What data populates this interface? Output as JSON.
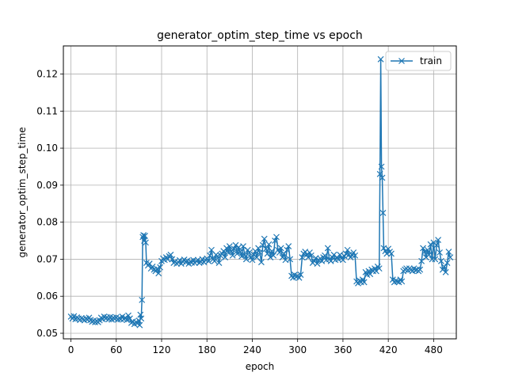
{
  "chart_data": {
    "type": "line",
    "title": "generator_optim_step_time vs epoch",
    "xlabel": "epoch",
    "ylabel": "generator_optim_step_time",
    "xlim": [
      -10,
      510
    ],
    "ylim": [
      0.0485,
      0.1276
    ],
    "xticks": [
      0,
      60,
      120,
      180,
      240,
      300,
      360,
      420,
      480
    ],
    "yticks": [
      0.05,
      0.06,
      0.07,
      0.08,
      0.09,
      0.1,
      0.11,
      0.12
    ],
    "ytick_labels": [
      "0.05",
      "0.06",
      "0.07",
      "0.08",
      "0.09",
      "0.10",
      "0.11",
      "0.12"
    ],
    "grid": true,
    "legend_position": "upper right",
    "series": [
      {
        "name": "train",
        "color": "#1f77b4",
        "marker": "x",
        "points": [
          [
            0,
            0.0545
          ],
          [
            2,
            0.054
          ],
          [
            4,
            0.0546
          ],
          [
            6,
            0.0538
          ],
          [
            8,
            0.0543
          ],
          [
            10,
            0.054
          ],
          [
            12,
            0.0536
          ],
          [
            14,
            0.0541
          ],
          [
            16,
            0.0538
          ],
          [
            18,
            0.0535
          ],
          [
            20,
            0.054
          ],
          [
            22,
            0.0537
          ],
          [
            24,
            0.0542
          ],
          [
            26,
            0.0536
          ],
          [
            28,
            0.0531
          ],
          [
            30,
            0.0534
          ],
          [
            32,
            0.053
          ],
          [
            34,
            0.0533
          ],
          [
            36,
            0.053
          ],
          [
            38,
            0.0535
          ],
          [
            40,
            0.0542
          ],
          [
            42,
            0.0538
          ],
          [
            44,
            0.0545
          ],
          [
            46,
            0.054
          ],
          [
            48,
            0.0543
          ],
          [
            50,
            0.0538
          ],
          [
            52,
            0.0544
          ],
          [
            54,
            0.0537
          ],
          [
            56,
            0.0542
          ],
          [
            58,
            0.0539
          ],
          [
            60,
            0.0543
          ],
          [
            62,
            0.0537
          ],
          [
            64,
            0.0541
          ],
          [
            66,
            0.0538
          ],
          [
            68,
            0.0545
          ],
          [
            70,
            0.0538
          ],
          [
            72,
            0.0542
          ],
          [
            74,
            0.0536
          ],
          [
            76,
            0.0548
          ],
          [
            78,
            0.054
          ],
          [
            80,
            0.0528
          ],
          [
            82,
            0.0532
          ],
          [
            84,
            0.0525
          ],
          [
            86,
            0.053
          ],
          [
            88,
            0.0527
          ],
          [
            90,
            0.0534
          ],
          [
            91,
            0.0522
          ],
          [
            92,
            0.055
          ],
          [
            93,
            0.054
          ],
          [
            94,
            0.059
          ],
          [
            95,
            0.076
          ],
          [
            96,
            0.0765
          ],
          [
            97,
            0.075
          ],
          [
            98,
            0.0763
          ],
          [
            99,
            0.0745
          ],
          [
            100,
            0.069
          ],
          [
            102,
            0.0683
          ],
          [
            104,
            0.0688
          ],
          [
            106,
            0.0675
          ],
          [
            108,
            0.068
          ],
          [
            110,
            0.0672
          ],
          [
            112,
            0.0668
          ],
          [
            114,
            0.0674
          ],
          [
            116,
            0.0662
          ],
          [
            118,
            0.0678
          ],
          [
            120,
            0.0695
          ],
          [
            122,
            0.0702
          ],
          [
            124,
            0.0698
          ],
          [
            126,
            0.0705
          ],
          [
            128,
            0.07
          ],
          [
            130,
            0.0708
          ],
          [
            132,
            0.0712
          ],
          [
            134,
            0.07
          ],
          [
            136,
            0.069
          ],
          [
            138,
            0.0694
          ],
          [
            140,
            0.0688
          ],
          [
            142,
            0.0692
          ],
          [
            144,
            0.0697
          ],
          [
            146,
            0.0688
          ],
          [
            148,
            0.0694
          ],
          [
            150,
            0.0699
          ],
          [
            152,
            0.0692
          ],
          [
            154,
            0.0696
          ],
          [
            156,
            0.0688
          ],
          [
            158,
            0.0694
          ],
          [
            160,
            0.0691
          ],
          [
            162,
            0.0698
          ],
          [
            164,
            0.069
          ],
          [
            166,
            0.0695
          ],
          [
            168,
            0.0698
          ],
          [
            170,
            0.069
          ],
          [
            172,
            0.0693
          ],
          [
            174,
            0.07
          ],
          [
            176,
            0.0692
          ],
          [
            178,
            0.0698
          ],
          [
            180,
            0.0702
          ],
          [
            182,
            0.0695
          ],
          [
            184,
            0.071
          ],
          [
            186,
            0.0725
          ],
          [
            188,
            0.07
          ],
          [
            190,
            0.0695
          ],
          [
            192,
            0.0712
          ],
          [
            194,
            0.0708
          ],
          [
            196,
            0.069
          ],
          [
            198,
            0.071
          ],
          [
            200,
            0.0715
          ],
          [
            202,
            0.0722
          ],
          [
            204,
            0.0705
          ],
          [
            206,
            0.073
          ],
          [
            208,
            0.0718
          ],
          [
            210,
            0.0735
          ],
          [
            212,
            0.0722
          ],
          [
            214,
            0.071
          ],
          [
            216,
            0.0728
          ],
          [
            218,
            0.0738
          ],
          [
            220,
            0.0715
          ],
          [
            222,
            0.0732
          ],
          [
            224,
            0.072
          ],
          [
            226,
            0.0708
          ],
          [
            228,
            0.0735
          ],
          [
            230,
            0.0712
          ],
          [
            232,
            0.07
          ],
          [
            234,
            0.0725
          ],
          [
            236,
            0.0718
          ],
          [
            238,
            0.0705
          ],
          [
            240,
            0.0698
          ],
          [
            242,
            0.0712
          ],
          [
            244,
            0.0722
          ],
          [
            246,
            0.0705
          ],
          [
            248,
            0.073
          ],
          [
            250,
            0.0718
          ],
          [
            252,
            0.0692
          ],
          [
            254,
            0.0738
          ],
          [
            256,
            0.0755
          ],
          [
            258,
            0.0728
          ],
          [
            260,
            0.0715
          ],
          [
            262,
            0.074
          ],
          [
            264,
            0.0705
          ],
          [
            266,
            0.0722
          ],
          [
            268,
            0.071
          ],
          [
            270,
            0.075
          ],
          [
            272,
            0.076
          ],
          [
            274,
            0.0725
          ],
          [
            276,
            0.0718
          ],
          [
            278,
            0.073
          ],
          [
            280,
            0.0705
          ],
          [
            282,
            0.0715
          ],
          [
            284,
            0.0698
          ],
          [
            286,
            0.0725
          ],
          [
            288,
            0.0735
          ],
          [
            290,
            0.07
          ],
          [
            292,
            0.0655
          ],
          [
            294,
            0.065
          ],
          [
            296,
            0.0658
          ],
          [
            298,
            0.0652
          ],
          [
            300,
            0.0655
          ],
          [
            302,
            0.065
          ],
          [
            304,
            0.0658
          ],
          [
            306,
            0.0705
          ],
          [
            308,
            0.0715
          ],
          [
            310,
            0.072
          ],
          [
            312,
            0.0712
          ],
          [
            314,
            0.0705
          ],
          [
            316,
            0.0718
          ],
          [
            318,
            0.071
          ],
          [
            320,
            0.069
          ],
          [
            322,
            0.0695
          ],
          [
            324,
            0.0703
          ],
          [
            326,
            0.0688
          ],
          [
            328,
            0.0698
          ],
          [
            330,
            0.0702
          ],
          [
            332,
            0.0695
          ],
          [
            334,
            0.0705
          ],
          [
            336,
            0.071
          ],
          [
            338,
            0.0698
          ],
          [
            340,
            0.073
          ],
          [
            342,
            0.07
          ],
          [
            344,
            0.0695
          ],
          [
            346,
            0.0705
          ],
          [
            348,
            0.0712
          ],
          [
            350,
            0.0698
          ],
          [
            352,
            0.0705
          ],
          [
            354,
            0.07
          ],
          [
            356,
            0.0712
          ],
          [
            358,
            0.0703
          ],
          [
            360,
            0.0698
          ],
          [
            362,
            0.0708
          ],
          [
            364,
            0.0715
          ],
          [
            366,
            0.0725
          ],
          [
            368,
            0.0712
          ],
          [
            370,
            0.0705
          ],
          [
            372,
            0.0712
          ],
          [
            374,
            0.0718
          ],
          [
            376,
            0.071
          ],
          [
            378,
            0.064
          ],
          [
            380,
            0.0635
          ],
          [
            382,
            0.0642
          ],
          [
            384,
            0.0638
          ],
          [
            386,
            0.0645
          ],
          [
            388,
            0.0638
          ],
          [
            390,
            0.0665
          ],
          [
            392,
            0.0658
          ],
          [
            394,
            0.0668
          ],
          [
            396,
            0.066
          ],
          [
            398,
            0.0672
          ],
          [
            400,
            0.0668
          ],
          [
            402,
            0.0675
          ],
          [
            404,
            0.0668
          ],
          [
            406,
            0.068
          ],
          [
            408,
            0.0675
          ],
          [
            409,
            0.093
          ],
          [
            410,
            0.124
          ],
          [
            411,
            0.095
          ],
          [
            412,
            0.092
          ],
          [
            413,
            0.0825
          ],
          [
            414,
            0.073
          ],
          [
            416,
            0.0722
          ],
          [
            418,
            0.0715
          ],
          [
            420,
            0.0728
          ],
          [
            422,
            0.072
          ],
          [
            424,
            0.0715
          ],
          [
            426,
            0.0645
          ],
          [
            428,
            0.0638
          ],
          [
            430,
            0.0642
          ],
          [
            432,
            0.064
          ],
          [
            434,
            0.0638
          ],
          [
            436,
            0.0645
          ],
          [
            438,
            0.064
          ],
          [
            440,
            0.0668
          ],
          [
            442,
            0.0672
          ],
          [
            444,
            0.0675
          ],
          [
            446,
            0.067
          ],
          [
            448,
            0.0675
          ],
          [
            450,
            0.0672
          ],
          [
            452,
            0.0668
          ],
          [
            454,
            0.0675
          ],
          [
            456,
            0.067
          ],
          [
            458,
            0.0672
          ],
          [
            460,
            0.0668
          ],
          [
            462,
            0.0672
          ],
          [
            464,
            0.0695
          ],
          [
            466,
            0.073
          ],
          [
            468,
            0.072
          ],
          [
            470,
            0.0705
          ],
          [
            472,
            0.0725
          ],
          [
            474,
            0.0712
          ],
          [
            476,
            0.074
          ],
          [
            478,
            0.07
          ],
          [
            480,
            0.0745
          ],
          [
            482,
            0.07
          ],
          [
            484,
            0.0738
          ],
          [
            486,
            0.0752
          ],
          [
            488,
            0.0718
          ],
          [
            490,
            0.0695
          ],
          [
            492,
            0.0672
          ],
          [
            494,
            0.068
          ],
          [
            496,
            0.0665
          ],
          [
            498,
            0.069
          ],
          [
            500,
            0.072
          ],
          [
            502,
            0.0705
          ]
        ]
      }
    ]
  }
}
